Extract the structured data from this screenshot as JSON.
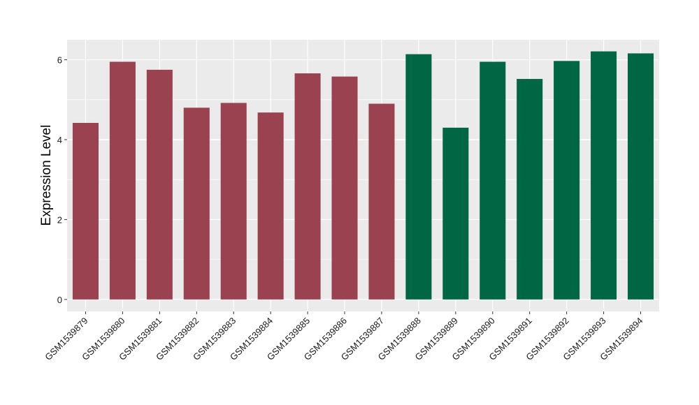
{
  "chart_data": {
    "type": "bar",
    "title": "",
    "xlabel": "",
    "ylabel": "Expression Level",
    "ylim": [
      -0.3,
      6.5
    ],
    "yticks": [
      0,
      2,
      4,
      6
    ],
    "grid": true,
    "legend": "none",
    "background": "#ebebeb",
    "colors": {
      "group1": "#9a4250",
      "group2": "#006644"
    },
    "categories": [
      "GSM1539879",
      "GSM1539880",
      "GSM1539881",
      "GSM1539882",
      "GSM1539883",
      "GSM1539884",
      "GSM1539885",
      "GSM1539886",
      "GSM1539887",
      "GSM1539888",
      "GSM1539889",
      "GSM1539890",
      "GSM1539891",
      "GSM1539892",
      "GSM1539893",
      "GSM1539894"
    ],
    "values": [
      4.42,
      5.95,
      5.75,
      4.8,
      4.92,
      4.68,
      5.66,
      5.58,
      4.9,
      6.14,
      4.3,
      5.95,
      5.52,
      5.97,
      6.21,
      6.16
    ],
    "groups": [
      1,
      1,
      1,
      1,
      1,
      1,
      1,
      1,
      1,
      2,
      2,
      2,
      2,
      2,
      2,
      2
    ]
  }
}
